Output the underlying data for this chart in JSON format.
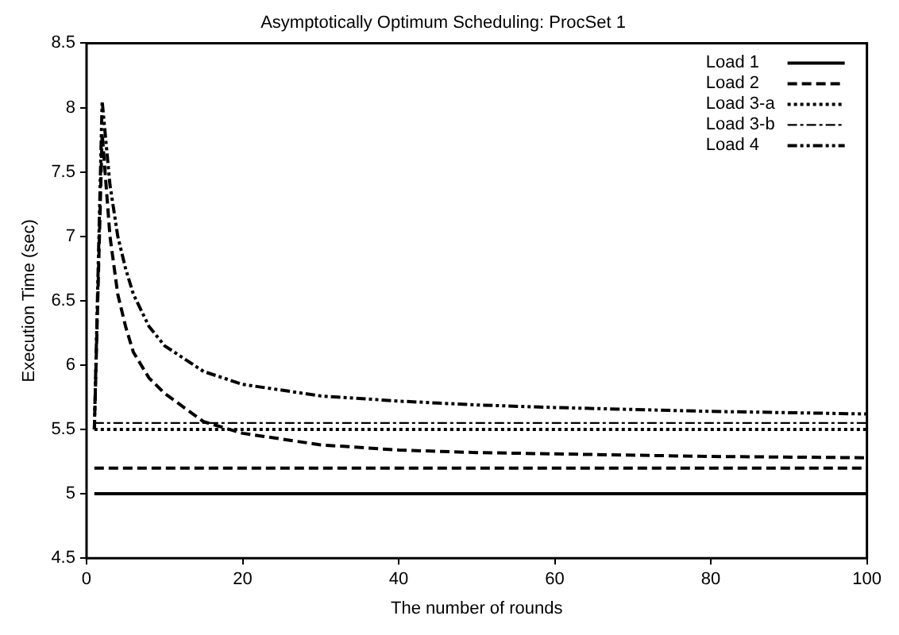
{
  "chart_data": {
    "type": "line",
    "title": "Asymptotically Optimum Scheduling: ProcSet 1",
    "xlabel": "The number of rounds",
    "ylabel": "Execution Time (sec)",
    "xlim": [
      0,
      100
    ],
    "xticks": [
      0,
      20,
      40,
      60,
      80,
      100
    ],
    "ylim": [
      4.5,
      8.5
    ],
    "yticks": [
      4.5,
      5,
      5.5,
      6,
      6.5,
      7,
      7.5,
      8,
      8.5
    ],
    "grid": false,
    "legend": "top right",
    "marker": "none",
    "series": [
      {
        "name": "Load 1",
        "color": "#000000",
        "line_style": "solid",
        "x": [
          1,
          100
        ],
        "values": [
          5,
          5
        ]
      },
      {
        "name": "Load 2",
        "color": "#000000",
        "line_style": "dashed",
        "x": [
          1,
          2,
          3,
          4,
          5,
          6,
          8,
          10,
          15,
          20,
          30,
          40,
          50,
          60,
          80,
          100
        ],
        "values": [
          5.5,
          7.8,
          7.0,
          6.55,
          6.3,
          6.1,
          5.9,
          5.78,
          5.56,
          5.47,
          5.38,
          5.34,
          5.32,
          5.31,
          5.29,
          5.28
        ]
      },
      {
        "name": "Load 3-a",
        "color": "#000000",
        "line_style": "dotted",
        "x": [
          1,
          100
        ],
        "values": [
          5.5,
          5.5
        ]
      },
      {
        "name": "Load 3-b",
        "color": "#000000",
        "line_style": "dashdot",
        "x": [
          1,
          100
        ],
        "values": [
          5.55,
          5.55
        ]
      },
      {
        "name": "Load 4",
        "color": "#000000",
        "line_style": "dashdotdot",
        "x": [
          1,
          2,
          3,
          4,
          5,
          6,
          8,
          10,
          15,
          20,
          30,
          40,
          50,
          60,
          80,
          100
        ],
        "values": [
          5.5,
          8.05,
          7.4,
          7.0,
          6.75,
          6.55,
          6.3,
          6.15,
          5.95,
          5.85,
          5.76,
          5.72,
          5.69,
          5.67,
          5.64,
          5.62
        ]
      },
      {
        "color": "#000000",
        "line_style": "dashed",
        "x": [
          1,
          100
        ],
        "values": [
          5.2,
          5.2
        ]
      }
    ]
  }
}
